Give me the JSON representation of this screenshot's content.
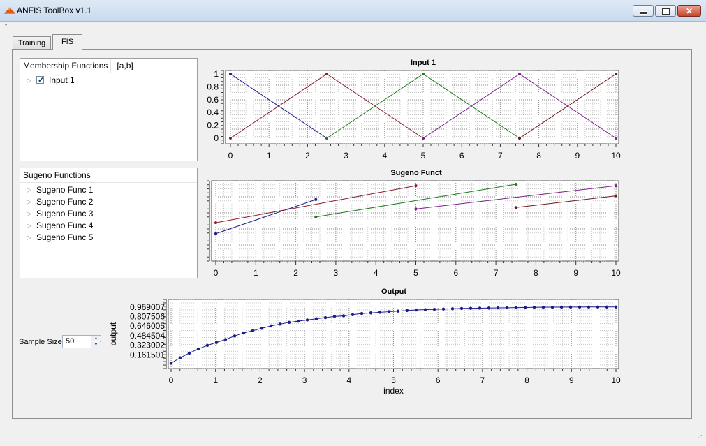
{
  "window": {
    "title": "ANFIS ToolBox v1.1",
    "icon": "matlab-peak-icon"
  },
  "tabs": [
    {
      "label": "Training",
      "active": false
    },
    {
      "label": "FIS",
      "active": true
    }
  ],
  "membership_panel": {
    "header_col1": "Membership Functions",
    "header_col2": "[a,b]",
    "items": [
      {
        "label": "Input 1",
        "checked": true
      }
    ]
  },
  "sugeno_panel": {
    "header": "Sugeno Functions",
    "items": [
      {
        "label": "Sugeno Func 1"
      },
      {
        "label": "Sugeno Func 2"
      },
      {
        "label": "Sugeno Func 3"
      },
      {
        "label": "Sugeno Func 4"
      },
      {
        "label": "Sugeno Func 5"
      }
    ]
  },
  "sample_size": {
    "label": "Sample Size",
    "value": "50"
  },
  "colors": {
    "series": [
      "#1c1c8a",
      "#8b1a2a",
      "#1f7a1f",
      "#7a1f8a",
      "#6b1a1a"
    ]
  },
  "chart_data": [
    {
      "type": "line",
      "title": "Input 1",
      "xlabel": "",
      "ylabel": "",
      "xlim": [
        0,
        10
      ],
      "ylim": [
        0,
        1
      ],
      "xticks": [
        "0",
        "1",
        "2",
        "3",
        "4",
        "5",
        "6",
        "7",
        "8",
        "9",
        "10"
      ],
      "yticks": [
        "0",
        "0.2",
        "0.4",
        "0.6",
        "0.8",
        "1"
      ],
      "grid": true,
      "series": [
        {
          "x": [
            0,
            2.5
          ],
          "y": [
            1,
            0
          ]
        },
        {
          "x": [
            0,
            2.5,
            5
          ],
          "y": [
            0,
            1,
            0
          ]
        },
        {
          "x": [
            2.5,
            5,
            7.5
          ],
          "y": [
            0,
            1,
            0
          ]
        },
        {
          "x": [
            5,
            7.5,
            10
          ],
          "y": [
            0,
            1,
            0
          ]
        },
        {
          "x": [
            7.5,
            10
          ],
          "y": [
            0,
            1
          ]
        }
      ]
    },
    {
      "type": "line",
      "title": "Sugeno Funct",
      "xlabel": "",
      "ylabel": "",
      "xlim": [
        0,
        10
      ],
      "ylim": [
        0,
        1
      ],
      "xticks": [
        "0",
        "1",
        "2",
        "3",
        "4",
        "5",
        "6",
        "7",
        "8",
        "9",
        "10"
      ],
      "yticks": [],
      "grid": true,
      "series": [
        {
          "x": [
            0,
            2.5
          ],
          "y": [
            0.32,
            0.79
          ]
        },
        {
          "x": [
            0,
            5
          ],
          "y": [
            0.47,
            0.98
          ]
        },
        {
          "x": [
            2.5,
            7.5
          ],
          "y": [
            0.55,
            1.0
          ]
        },
        {
          "x": [
            5,
            10
          ],
          "y": [
            0.66,
            0.98
          ]
        },
        {
          "x": [
            7.5,
            10
          ],
          "y": [
            0.68,
            0.84
          ]
        }
      ]
    },
    {
      "type": "line",
      "title": "Output",
      "xlabel": "index",
      "ylabel": "output",
      "xlim": [
        0,
        10
      ],
      "ylim": [
        0,
        1.05
      ],
      "xticks": [
        "0",
        "1",
        "2",
        "3",
        "4",
        "5",
        "6",
        "7",
        "8",
        "9",
        "10"
      ],
      "yticks": [
        "0.161501",
        "0.323002",
        "0.484504",
        "0.646005",
        "0.807506",
        "0.969007"
      ],
      "ytick_values": [
        0.161501,
        0.323002,
        0.484504,
        0.646005,
        0.807506,
        0.969007
      ],
      "grid": true,
      "x": [
        0,
        0.204,
        0.408,
        0.612,
        0.816,
        1.02,
        1.224,
        1.429,
        1.633,
        1.837,
        2.041,
        2.245,
        2.449,
        2.653,
        2.857,
        3.061,
        3.265,
        3.469,
        3.673,
        3.878,
        4.082,
        4.286,
        4.49,
        4.694,
        4.898,
        5.102,
        5.306,
        5.51,
        5.714,
        5.918,
        6.122,
        6.327,
        6.531,
        6.735,
        6.939,
        7.143,
        7.347,
        7.551,
        7.755,
        7.959,
        8.163,
        8.367,
        8.571,
        8.776,
        8.98,
        9.184,
        9.388,
        9.592,
        9.796,
        10
      ],
      "y": [
        0.02,
        0.11,
        0.19,
        0.26,
        0.32,
        0.37,
        0.42,
        0.48,
        0.53,
        0.57,
        0.61,
        0.65,
        0.68,
        0.71,
        0.73,
        0.75,
        0.77,
        0.79,
        0.81,
        0.82,
        0.84,
        0.86,
        0.87,
        0.88,
        0.89,
        0.9,
        0.91,
        0.92,
        0.925,
        0.93,
        0.935,
        0.94,
        0.945,
        0.948,
        0.95,
        0.952,
        0.955,
        0.957,
        0.96,
        0.962,
        0.965,
        0.966,
        0.967,
        0.968,
        0.969,
        0.969,
        0.97,
        0.97,
        0.97,
        0.97
      ]
    }
  ]
}
